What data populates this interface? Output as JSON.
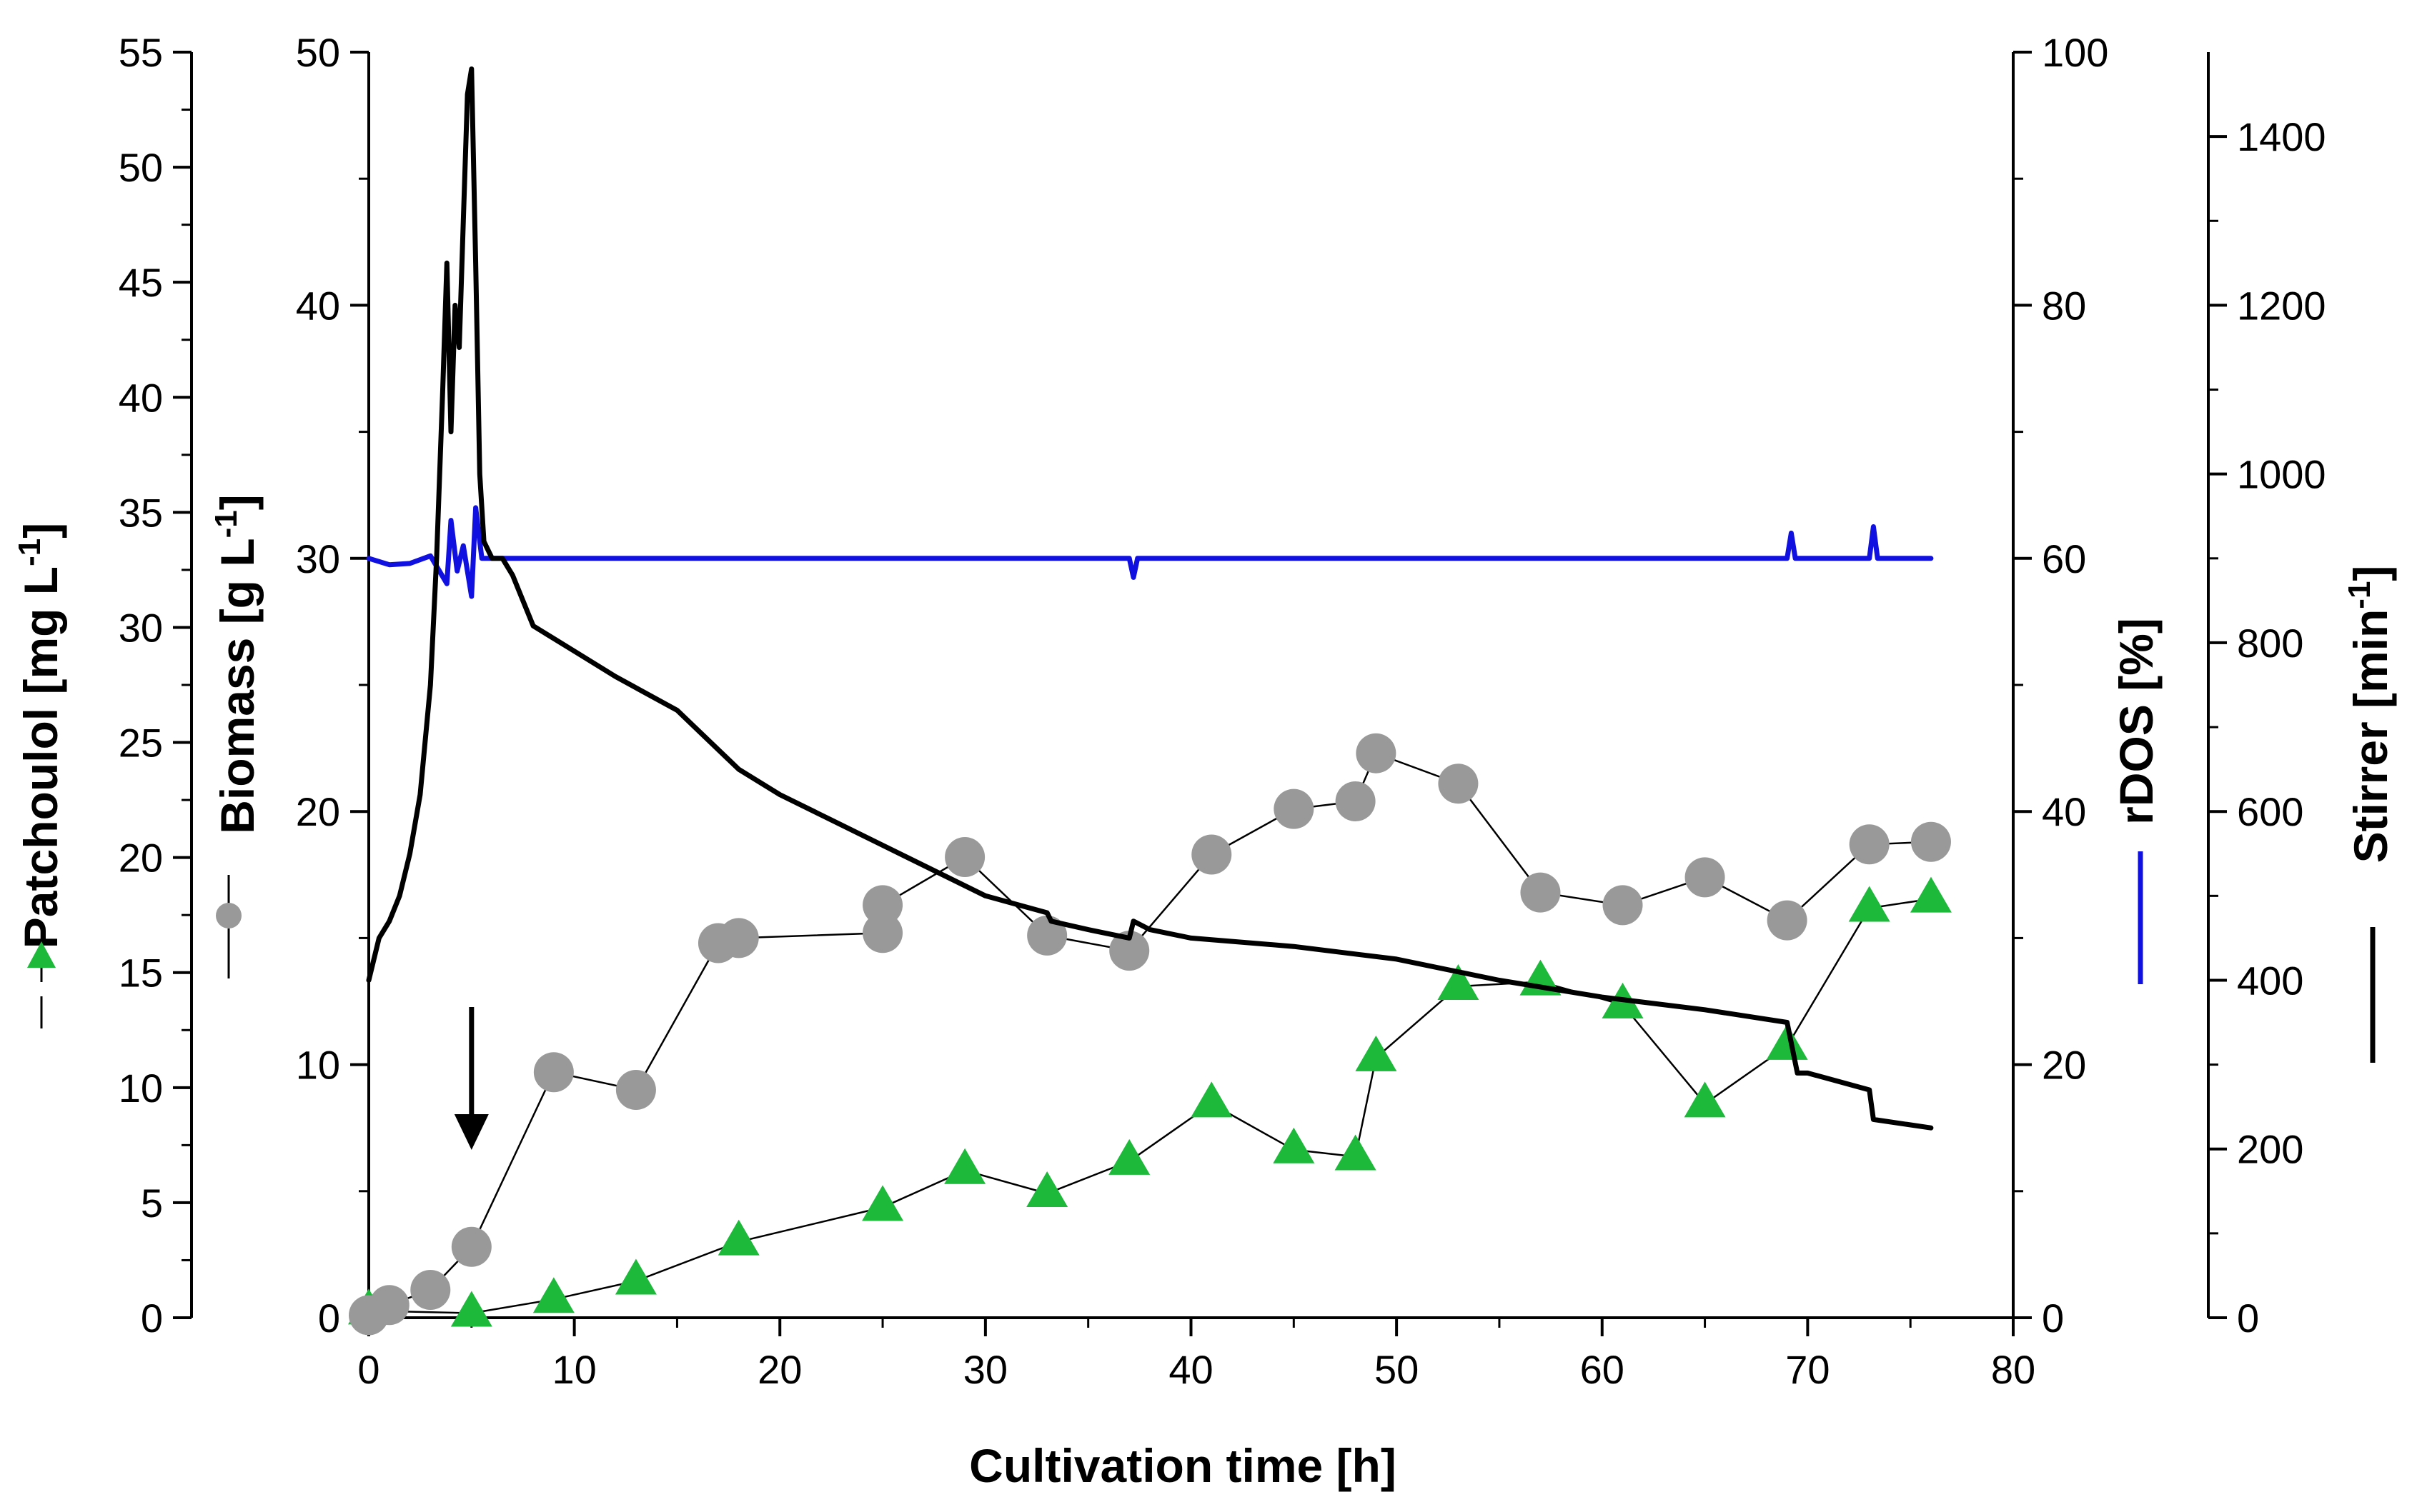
{
  "chart_data": {
    "type": "line",
    "xlabel": "Cultivation time [h]",
    "xlim": [
      0,
      80
    ],
    "xticks": [
      0,
      10,
      20,
      30,
      40,
      50,
      60,
      70,
      80
    ],
    "axes": {
      "patchoulol": {
        "label": "Patchoulol [mg L",
        "sup": "-1",
        "close": "]",
        "ylim": [
          0,
          55
        ],
        "ticks": [
          0,
          5,
          10,
          15,
          20,
          25,
          30,
          35,
          40,
          45,
          50,
          55
        ]
      },
      "biomass": {
        "label": "Biomass [g L",
        "sup": "-1",
        "close": "]",
        "ylim": [
          0,
          50
        ],
        "ticks": [
          0,
          10,
          20,
          30,
          40,
          50
        ]
      },
      "rdos": {
        "label": "rDOS [%]",
        "ylim": [
          0,
          100
        ],
        "ticks": [
          0,
          20,
          40,
          60,
          80,
          100
        ]
      },
      "stirrer": {
        "label": "Stirrer [min",
        "sup": "-1",
        "close": "]",
        "ylim": [
          0,
          1500
        ],
        "ticks": [
          0,
          200,
          400,
          600,
          800,
          1000,
          1200,
          1400
        ]
      }
    },
    "series": [
      {
        "name": "Patchoulol",
        "axis": "patchoulol",
        "marker": "triangle",
        "color": "#1db93a",
        "x": [
          0,
          5,
          9,
          13,
          18,
          25,
          29,
          33,
          37,
          41,
          45,
          48,
          49,
          53,
          57,
          61,
          65,
          69,
          73,
          76
        ],
        "y": [
          0.3,
          0.2,
          0.8,
          1.6,
          3.3,
          4.8,
          6.4,
          5.4,
          6.8,
          9.3,
          7.3,
          7.0,
          11.3,
          14.4,
          14.6,
          13.6,
          9.3,
          11.8,
          17.8,
          18.2
        ]
      },
      {
        "name": "Biomass",
        "axis": "biomass",
        "marker": "circle",
        "color": "#999999",
        "x": [
          0,
          1,
          3,
          5,
          9,
          13,
          17,
          18,
          25,
          25,
          29,
          33,
          37,
          41,
          45,
          48,
          49,
          53,
          57,
          61,
          65,
          69,
          73,
          76
        ],
        "y": [
          0.1,
          0.5,
          1.1,
          2.8,
          9.7,
          9.0,
          14.8,
          15.0,
          15.2,
          16.3,
          18.2,
          15.1,
          14.5,
          18.3,
          20.1,
          20.4,
          22.3,
          21.1,
          16.8,
          16.3,
          17.4,
          15.7,
          18.7,
          18.8
        ]
      },
      {
        "name": "rDOS",
        "axis": "rdos",
        "marker": "line",
        "color": "#1010e0",
        "x": [
          0,
          1,
          2,
          3,
          3.8,
          4,
          4.3,
          4.6,
          5,
          5.2,
          5.5,
          6,
          7,
          15,
          25,
          37,
          37.2,
          37.4,
          40,
          50,
          60,
          69,
          69.2,
          69.4,
          73,
          73.2,
          73.4,
          76
        ],
        "y": [
          60,
          59.5,
          59.6,
          60.2,
          58,
          63,
          59,
          61,
          57,
          64,
          60,
          60,
          60,
          60,
          60,
          60,
          58.5,
          60,
          60,
          60,
          60,
          60,
          62,
          60,
          60,
          62.5,
          60,
          60
        ]
      },
      {
        "name": "Stirrer",
        "axis": "stirrer",
        "marker": "line",
        "color": "#000000",
        "x": [
          0,
          0.5,
          1,
          1.5,
          2,
          2.5,
          3,
          3.3,
          3.6,
          3.8,
          4,
          4.2,
          4.4,
          4.6,
          4.8,
          5,
          5.2,
          5.4,
          5.6,
          6,
          6.5,
          7,
          7.5,
          8,
          10,
          12,
          15,
          18,
          20,
          25,
          30,
          33,
          33.2,
          35,
          37,
          37.2,
          38,
          40,
          45,
          50,
          55,
          60,
          65,
          69,
          69.5,
          70,
          73,
          73.2,
          76
        ],
        "y": [
          400,
          450,
          470,
          500,
          550,
          620,
          750,
          900,
          1100,
          1250,
          1050,
          1200,
          1150,
          1300,
          1450,
          1480,
          1250,
          1000,
          920,
          900,
          900,
          880,
          850,
          820,
          790,
          760,
          720,
          650,
          620,
          560,
          500,
          480,
          470,
          460,
          450,
          470,
          460,
          450,
          440,
          425,
          400,
          380,
          365,
          350,
          290,
          290,
          270,
          235,
          225
        ]
      }
    ],
    "annotations": [
      {
        "type": "arrow",
        "x": 5,
        "direction": "down"
      }
    ]
  }
}
